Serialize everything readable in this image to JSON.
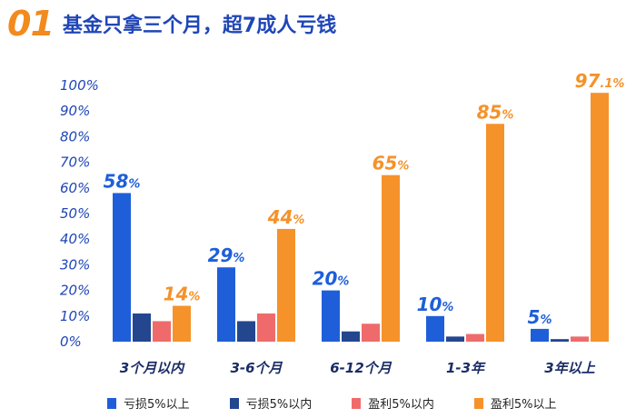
{
  "header": {
    "number": "01",
    "title": "基金只拿三个月，超7成人亏钱"
  },
  "chart_data": {
    "type": "bar",
    "title": "基金只拿三个月，超7成人亏钱",
    "categories": [
      "3个月以内",
      "3-6个月",
      "6-12个月",
      "1-3年",
      "3年以上"
    ],
    "yticks": [
      "0%",
      "10%",
      "20%",
      "30%",
      "40%",
      "50%",
      "60%",
      "70%",
      "80%",
      "90%",
      "100%"
    ],
    "ylim": [
      0,
      100
    ],
    "grid": false,
    "legend_position": "bottom",
    "series": [
      {
        "name": "亏损5%以上",
        "color": "#1e5fd9",
        "values": [
          58,
          29,
          20,
          10,
          5
        ]
      },
      {
        "name": "亏损5%以内",
        "color": "#24468f",
        "values": [
          11,
          8,
          4,
          2,
          1
        ]
      },
      {
        "name": "盈利5%以内",
        "color": "#ef6b6b",
        "values": [
          8,
          11,
          7,
          3,
          2
        ]
      },
      {
        "name": "盈利5%以上",
        "color": "#f5922a",
        "values": [
          14,
          44,
          65,
          85,
          97.1
        ]
      }
    ],
    "data_labels": [
      {
        "series": 0,
        "category": 0,
        "main": "58",
        "suffix": "%"
      },
      {
        "series": 3,
        "category": 0,
        "main": "14",
        "suffix": "%"
      },
      {
        "series": 0,
        "category": 1,
        "main": "29",
        "suffix": "%"
      },
      {
        "series": 3,
        "category": 1,
        "main": "44",
        "suffix": "%"
      },
      {
        "series": 0,
        "category": 2,
        "main": "20",
        "suffix": "%"
      },
      {
        "series": 3,
        "category": 2,
        "main": "65",
        "suffix": "%"
      },
      {
        "series": 0,
        "category": 3,
        "main": "10",
        "suffix": "%"
      },
      {
        "series": 3,
        "category": 3,
        "main": "85",
        "suffix": "%"
      },
      {
        "series": 0,
        "category": 4,
        "main": "5",
        "suffix": "%"
      },
      {
        "series": 3,
        "category": 4,
        "main": "97",
        "suffix": ".1%"
      }
    ]
  }
}
